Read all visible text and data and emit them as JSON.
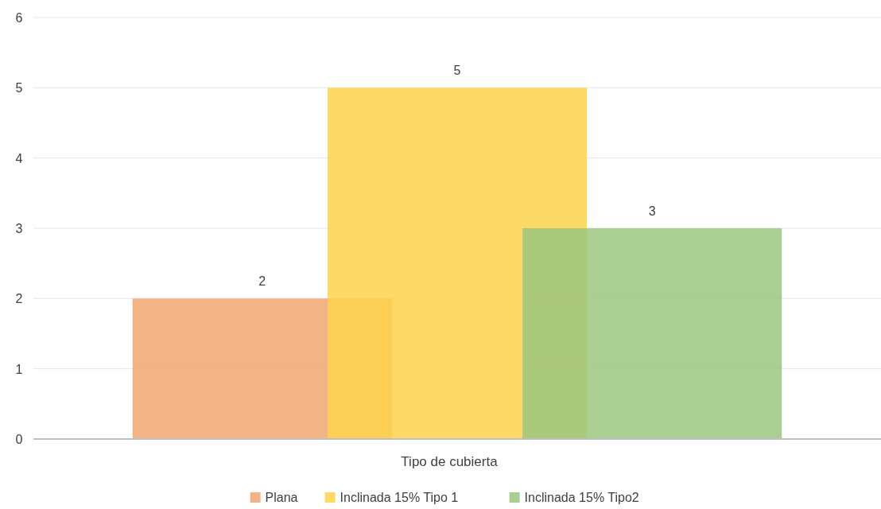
{
  "chart_data": {
    "type": "bar",
    "xlabel": "Tipo de cubierta",
    "categories": [
      null
    ],
    "series": [
      {
        "name": "Plana",
        "color": "#f0a672",
        "values": [
          2
        ]
      },
      {
        "name": "Inclinada 15% Tipo 1",
        "color": "#fdd44e",
        "values": [
          5
        ]
      },
      {
        "name": "Inclinada 15% Tipo2",
        "color": "#9cc57f",
        "values": [
          3
        ]
      }
    ],
    "ylim": [
      0,
      6
    ],
    "yticks": [
      0,
      1,
      2,
      3,
      4,
      5,
      6
    ],
    "grid": "y",
    "legend": "bottom",
    "data_labels": true
  }
}
